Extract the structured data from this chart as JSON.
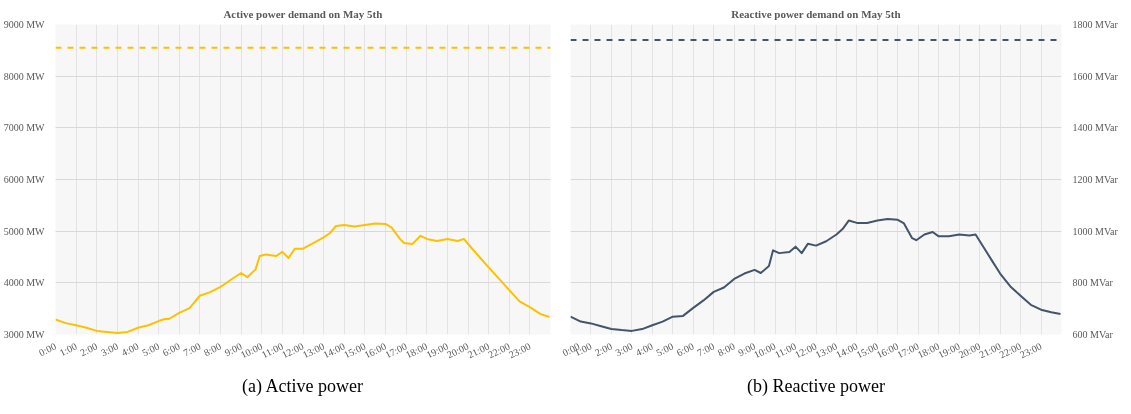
{
  "chart_data": [
    {
      "type": "line",
      "title": "Active power demand on May 5th",
      "annotations": [
        "(a) Active power"
      ],
      "x": [
        0,
        0.5,
        1,
        1.5,
        2,
        2.5,
        3,
        3.5,
        4,
        4.5,
        5,
        5.3,
        5.5,
        6,
        6.5,
        7,
        7.5,
        8,
        8.5,
        9,
        9.3,
        9.7,
        9.9,
        10.2,
        10.7,
        11,
        11.3,
        11.6,
        12,
        12.5,
        13,
        13.3,
        13.6,
        14,
        14.5,
        15,
        15.5,
        16,
        16.3,
        16.7,
        16.9,
        17.3,
        17.7,
        18,
        18.5,
        19,
        19.5,
        19.8,
        20.2,
        20.6,
        21,
        21.5,
        22,
        22.5,
        23,
        23.5,
        23.95
      ],
      "series": [
        {
          "color": "#ffc000",
          "values": [
            3290,
            3220,
            3180,
            3130,
            3070,
            3050,
            3030,
            3050,
            3130,
            3180,
            3260,
            3300,
            3300,
            3420,
            3510,
            3750,
            3820,
            3920,
            4060,
            4190,
            4110,
            4260,
            4520,
            4550,
            4520,
            4600,
            4480,
            4660,
            4660,
            4770,
            4880,
            4960,
            5100,
            5120,
            5090,
            5120,
            5150,
            5140,
            5070,
            4850,
            4770,
            4750,
            4910,
            4850,
            4810,
            4850,
            4810,
            4850,
            4660,
            4480,
            4300,
            4080,
            3860,
            3640,
            3530,
            3400,
            3340
          ]
        }
      ],
      "xlim": [
        0,
        24
      ],
      "xticks": [
        {
          "value": 0,
          "label": "0:00"
        },
        {
          "value": 1,
          "label": "1:00"
        },
        {
          "value": 2,
          "label": "2:00"
        },
        {
          "value": 3,
          "label": "3:00"
        },
        {
          "value": 4,
          "label": "4:00"
        },
        {
          "value": 5,
          "label": "5:00"
        },
        {
          "value": 6,
          "label": "6:00"
        },
        {
          "value": 7,
          "label": "7:00"
        },
        {
          "value": 8,
          "label": "8:00"
        },
        {
          "value": 9,
          "label": "9:00"
        },
        {
          "value": 10,
          "label": "10:00"
        },
        {
          "value": 11,
          "label": "11:00"
        },
        {
          "value": 12,
          "label": "12:00"
        },
        {
          "value": 13,
          "label": "13:00"
        },
        {
          "value": 14,
          "label": "14:00"
        },
        {
          "value": 15,
          "label": "15:00"
        },
        {
          "value": 16,
          "label": "16:00"
        },
        {
          "value": 17,
          "label": "17:00"
        },
        {
          "value": 18,
          "label": "18:00"
        },
        {
          "value": 19,
          "label": "19:00"
        },
        {
          "value": 20,
          "label": "20:00"
        },
        {
          "value": 21,
          "label": "21:00"
        },
        {
          "value": 22,
          "label": "22:00"
        },
        {
          "value": 23,
          "label": "23:00"
        }
      ],
      "ylim": [
        3000,
        9000
      ],
      "yticks": [
        {
          "value": 3000,
          "label": "3000 MW"
        },
        {
          "value": 4000,
          "label": "4000 MW"
        },
        {
          "value": 5000,
          "label": "5000 MW"
        },
        {
          "value": 6000,
          "label": "6000 MW"
        },
        {
          "value": 7000,
          "label": "7000 MW"
        },
        {
          "value": 8000,
          "label": "8000 MW"
        },
        {
          "value": 9000,
          "label": "9000 MW"
        }
      ],
      "ref_lines": [
        {
          "axis": "y",
          "value": 8550,
          "color": "#ffc000",
          "line_style": "dashed"
        }
      ],
      "grid": true
    },
    {
      "type": "line",
      "title": "Reactive power demand on May 5th",
      "annotations": [
        "(b) Reactive power"
      ],
      "x": [
        0,
        0.5,
        1,
        1.5,
        2,
        2.5,
        3,
        3.5,
        4,
        4.5,
        5,
        5.5,
        6,
        6.5,
        7,
        7.5,
        8,
        8.5,
        9,
        9.3,
        9.7,
        9.9,
        10.2,
        10.7,
        11,
        11.3,
        11.6,
        12,
        12.5,
        13,
        13.3,
        13.6,
        14,
        14.5,
        15,
        15.5,
        16,
        16.3,
        16.7,
        16.9,
        17.3,
        17.7,
        18,
        18.5,
        19,
        19.5,
        19.8,
        20.2,
        20.6,
        21,
        21.5,
        22,
        22.5,
        23,
        23.5,
        23.95
      ],
      "series": [
        {
          "color": "#44546a",
          "axis": "y2",
          "values": [
            669,
            650,
            643,
            632,
            621,
            617,
            614,
            621,
            636,
            650,
            669,
            672,
            703,
            732,
            765,
            782,
            815,
            836,
            850,
            838,
            865,
            926,
            915,
            919,
            940,
            915,
            951,
            944,
            961,
            987,
            1008,
            1041,
            1032,
            1032,
            1041,
            1047,
            1044,
            1030,
            973,
            965,
            987,
            997,
            980,
            980,
            987,
            983,
            987,
            937,
            886,
            836,
            786,
            750,
            715,
            696,
            686,
            679
          ]
        }
      ],
      "xlim": [
        0,
        24
      ],
      "xticks": [
        {
          "value": 0,
          "label": "0:00"
        },
        {
          "value": 1,
          "label": "1:00"
        },
        {
          "value": 2,
          "label": "2:00"
        },
        {
          "value": 3,
          "label": "3:00"
        },
        {
          "value": 4,
          "label": "4:00"
        },
        {
          "value": 5,
          "label": "5:00"
        },
        {
          "value": 6,
          "label": "6:00"
        },
        {
          "value": 7,
          "label": "7:00"
        },
        {
          "value": 8,
          "label": "8:00"
        },
        {
          "value": 9,
          "label": "9:00"
        },
        {
          "value": 10,
          "label": "10:00"
        },
        {
          "value": 11,
          "label": "11:00"
        },
        {
          "value": 12,
          "label": "12:00"
        },
        {
          "value": 13,
          "label": "13:00"
        },
        {
          "value": 14,
          "label": "14:00"
        },
        {
          "value": 15,
          "label": "15:00"
        },
        {
          "value": 16,
          "label": "16:00"
        },
        {
          "value": 17,
          "label": "17:00"
        },
        {
          "value": 18,
          "label": "18:00"
        },
        {
          "value": 19,
          "label": "19:00"
        },
        {
          "value": 20,
          "label": "20:00"
        },
        {
          "value": 21,
          "label": "21:00"
        },
        {
          "value": 22,
          "label": "22:00"
        },
        {
          "value": 23,
          "label": "23:00"
        }
      ],
      "y2lim": [
        600,
        1800
      ],
      "y2ticks": [
        {
          "value": 600,
          "label": "600 MVar"
        },
        {
          "value": 800,
          "label": "800 MVar"
        },
        {
          "value": 1000,
          "label": "1000 MVar"
        },
        {
          "value": 1200,
          "label": "1200 MVar"
        },
        {
          "value": 1400,
          "label": "1400 MVar"
        },
        {
          "value": 1600,
          "label": "1600 MVar"
        },
        {
          "value": 1800,
          "label": "1800 MVar"
        }
      ],
      "ref_lines": [
        {
          "axis": "y2",
          "value": 1740,
          "color": "#44546a",
          "line_style": "dashed"
        }
      ],
      "grid": true
    }
  ]
}
